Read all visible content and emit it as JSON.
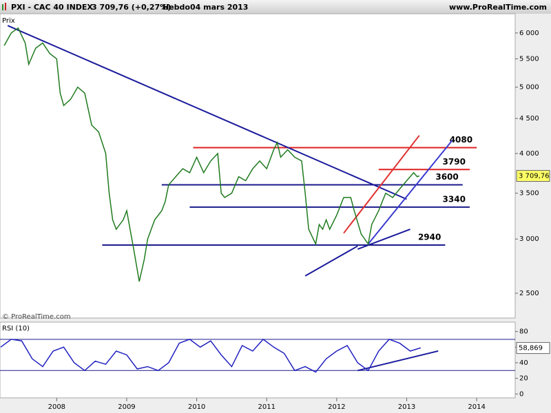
{
  "header": {
    "symbol": "PXI - CAC 40 INDEX",
    "quote": "3 709,76 (+0,27%)",
    "period": "Hebdo",
    "date": "04 mars 2013",
    "site": "www.ProRealTime.com"
  },
  "chart_data": [
    {
      "type": "line",
      "axis_label": "Prix",
      "footer": "© ProRealTime.com",
      "log_scale": true,
      "grid": false,
      "x": [
        2007.25,
        2007.35,
        2007.45,
        2007.55,
        2007.6,
        2007.7,
        2007.8,
        2007.9,
        2008.0,
        2008.05,
        2008.1,
        2008.2,
        2008.3,
        2008.4,
        2008.5,
        2008.6,
        2008.7,
        2008.75,
        2008.8,
        2008.85,
        2008.95,
        2009.0,
        2009.1,
        2009.18,
        2009.25,
        2009.3,
        2009.4,
        2009.5,
        2009.55,
        2009.6,
        2009.7,
        2009.8,
        2009.9,
        2010.0,
        2010.1,
        2010.2,
        2010.3,
        2010.35,
        2010.4,
        2010.5,
        2010.6,
        2010.7,
        2010.8,
        2010.9,
        2011.0,
        2011.1,
        2011.15,
        2011.2,
        2011.3,
        2011.4,
        2011.5,
        2011.55,
        2011.6,
        2011.7,
        2011.75,
        2011.8,
        2011.85,
        2011.9,
        2012.0,
        2012.1,
        2012.2,
        2012.25,
        2012.35,
        2012.45,
        2012.5,
        2012.6,
        2012.65,
        2012.7,
        2012.8,
        2012.9,
        2013.0,
        2013.1,
        2013.15,
        2013.18
      ],
      "series": [
        {
          "name": "CAC 40",
          "color": "#1f7a1f",
          "values": [
            5750,
            6000,
            6100,
            5800,
            5400,
            5700,
            5800,
            5600,
            5500,
            4900,
            4700,
            4800,
            5000,
            4900,
            4400,
            4300,
            4000,
            3500,
            3200,
            3100,
            3200,
            3300,
            2900,
            2600,
            2800,
            3000,
            3200,
            3300,
            3400,
            3600,
            3700,
            3800,
            3750,
            3950,
            3750,
            3900,
            4000,
            3500,
            3450,
            3500,
            3700,
            3650,
            3800,
            3900,
            3800,
            4050,
            4150,
            3950,
            4050,
            3950,
            3900,
            3500,
            3100,
            2950,
            3150,
            3100,
            3200,
            3100,
            3250,
            3450,
            3450,
            3300,
            3050,
            2950,
            3150,
            3300,
            3400,
            3500,
            3450,
            3550,
            3650,
            3750,
            3700,
            3709.76
          ]
        }
      ],
      "last": {
        "value": 3709.76,
        "label": "3 709,76"
      },
      "xlim": [
        2007.19,
        2014.55
      ],
      "xticks": [
        2008,
        2009,
        2010,
        2011,
        2012,
        2013,
        2014
      ],
      "ylim": [
        2300,
        6400
      ],
      "yticks": [
        {
          "value": 2500,
          "label": "2 500"
        },
        {
          "value": 3000,
          "label": "3 000"
        },
        {
          "value": 3500,
          "label": "3 500"
        },
        {
          "value": 4000,
          "label": "4 000"
        },
        {
          "value": 4500,
          "label": "4 500"
        },
        {
          "value": 5000,
          "label": "5 000"
        },
        {
          "value": 5500,
          "label": "5 500"
        },
        {
          "value": 6000,
          "label": "6 000"
        }
      ],
      "levels": [
        {
          "value": 4080,
          "color": "#e02020",
          "from": 2009.95,
          "to": 2014.0
        },
        {
          "value": 3790,
          "color": "#e02020",
          "from": 2012.6,
          "to": 2013.9
        },
        {
          "value": 3600,
          "color": "#1a1a8c",
          "from": 2009.5,
          "to": 2013.8
        },
        {
          "value": 3340,
          "color": "#1a1a8c",
          "from": 2009.9,
          "to": 2013.9
        },
        {
          "value": 2940,
          "color": "#1a1a8c",
          "from": 2008.65,
          "to": 2013.55
        }
      ],
      "trendlines": [
        {
          "color": "#1a1a9c",
          "x": [
            2007.3,
            2013.0
          ],
          "y": [
            6150,
            3430
          ]
        },
        {
          "color": "#1a1a9c",
          "x": [
            2011.55,
            2012.3
          ],
          "y": [
            2650,
            2930
          ]
        },
        {
          "color": "#1a1a9c",
          "x": [
            2012.3,
            2013.05
          ],
          "y": [
            2900,
            3100
          ]
        },
        {
          "color": "#3a3ad0",
          "x": [
            2012.45,
            2013.65
          ],
          "y": [
            2950,
            4180
          ]
        },
        {
          "color": "#e03030",
          "x": [
            2012.1,
            2013.18
          ],
          "y": [
            3060,
            4250
          ]
        }
      ]
    },
    {
      "type": "line",
      "title": "RSI (10)",
      "x": [
        2007.2,
        2007.35,
        2007.5,
        2007.65,
        2007.8,
        2007.95,
        2008.1,
        2008.25,
        2008.4,
        2008.55,
        2008.7,
        2008.85,
        2009.0,
        2009.15,
        2009.3,
        2009.45,
        2009.6,
        2009.75,
        2009.9,
        2010.05,
        2010.2,
        2010.35,
        2010.5,
        2010.65,
        2010.8,
        2010.95,
        2011.1,
        2011.25,
        2011.4,
        2011.55,
        2011.7,
        2011.85,
        2012.0,
        2012.15,
        2012.3,
        2012.45,
        2012.6,
        2012.75,
        2012.9,
        2013.05,
        2013.2
      ],
      "series": [
        {
          "name": "RSI",
          "color": "#2020c0",
          "values": [
            60,
            70,
            68,
            45,
            35,
            55,
            60,
            40,
            30,
            42,
            38,
            55,
            50,
            32,
            35,
            30,
            40,
            65,
            70,
            60,
            68,
            50,
            35,
            62,
            55,
            70,
            60,
            52,
            30,
            35,
            28,
            45,
            55,
            62,
            40,
            30,
            55,
            70,
            65,
            55,
            59
          ]
        }
      ],
      "last": {
        "value": 58.869,
        "label": "58,869"
      },
      "xlim": [
        2007.19,
        2014.55
      ],
      "ylim": [
        -5,
        92
      ],
      "yticks": [
        0,
        20,
        40,
        60,
        80
      ],
      "levels": [
        {
          "value": 70,
          "color": "#1a1a8c",
          "from": 2007.19,
          "to": 2014.55
        },
        {
          "value": 30,
          "color": "#1a1a8c",
          "from": 2007.19,
          "to": 2014.55
        }
      ],
      "trendlines": [
        {
          "color": "#1a1a9c",
          "x": [
            2012.3,
            2013.45
          ],
          "y": [
            30,
            55
          ]
        }
      ]
    }
  ]
}
